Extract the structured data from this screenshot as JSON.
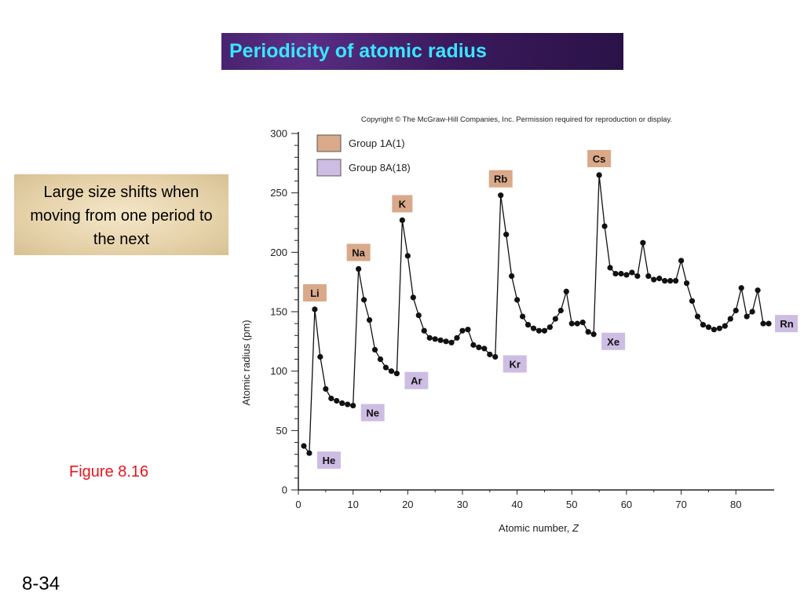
{
  "slide": {
    "title": "Periodicity of atomic radius",
    "note": "Large size shifts when moving from one period to the next",
    "figure_label": "Figure 8.16",
    "slide_number": "8-34"
  },
  "chart_data": {
    "type": "line",
    "copyright": "Copyright © The McGraw-Hill Companies, Inc. Permission required for reproduction or display.",
    "xlabel_prefix": "Atomic number, ",
    "xlabel_var": "Z",
    "ylabel": "Atomic radius (pm)",
    "xlim": [
      0,
      87
    ],
    "ylim": [
      0,
      300
    ],
    "xticks": [
      0,
      10,
      20,
      30,
      40,
      50,
      60,
      70,
      80
    ],
    "yticks": [
      0,
      50,
      100,
      150,
      200,
      250,
      300
    ],
    "legend": [
      {
        "label": "Group 1A(1)",
        "color": "#d9a98a"
      },
      {
        "label": "Group 8A(18)",
        "color": "#cdbde3"
      }
    ],
    "legend_position": "top-left",
    "colors": {
      "group1": "#d9a98a",
      "group8": "#cdbde3",
      "line": "#111111"
    },
    "x": [
      1,
      2,
      3,
      4,
      5,
      6,
      7,
      8,
      9,
      10,
      11,
      12,
      13,
      14,
      15,
      16,
      17,
      18,
      19,
      20,
      21,
      22,
      23,
      24,
      25,
      26,
      27,
      28,
      29,
      30,
      31,
      32,
      33,
      34,
      35,
      36,
      37,
      38,
      39,
      40,
      41,
      42,
      43,
      44,
      45,
      46,
      47,
      48,
      49,
      50,
      51,
      52,
      53,
      54,
      55,
      56,
      57,
      58,
      59,
      60,
      61,
      62,
      63,
      64,
      65,
      66,
      67,
      68,
      69,
      70,
      71,
      72,
      73,
      74,
      75,
      76,
      77,
      78,
      79,
      80,
      81,
      82,
      83,
      84,
      85,
      86
    ],
    "y": [
      37,
      31,
      152,
      112,
      85,
      77,
      75,
      73,
      72,
      71,
      186,
      160,
      143,
      118,
      110,
      103,
      100,
      98,
      227,
      197,
      162,
      147,
      134,
      128,
      127,
      126,
      125,
      124,
      128,
      134,
      135,
      122,
      120,
      119,
      114,
      112,
      248,
      215,
      180,
      160,
      146,
      139,
      136,
      134,
      134,
      137,
      144,
      151,
      167,
      140,
      140,
      141,
      133,
      131,
      265,
      222,
      187,
      182,
      182,
      181,
      183,
      180,
      208,
      180,
      177,
      178,
      176,
      176,
      176,
      193,
      174,
      159,
      146,
      139,
      137,
      135,
      136,
      138,
      144,
      151,
      170,
      146,
      150,
      168,
      140,
      140
    ],
    "element_labels": [
      {
        "text": "Li",
        "x": 3,
        "group": "1A"
      },
      {
        "text": "Na",
        "x": 11,
        "group": "1A"
      },
      {
        "text": "K",
        "x": 19,
        "group": "1A"
      },
      {
        "text": "Rb",
        "x": 37,
        "group": "1A"
      },
      {
        "text": "Cs",
        "x": 55,
        "group": "1A"
      },
      {
        "text": "He",
        "x": 2,
        "group": "8A"
      },
      {
        "text": "Ne",
        "x": 10,
        "group": "8A"
      },
      {
        "text": "Ar",
        "x": 18,
        "group": "8A"
      },
      {
        "text": "Kr",
        "x": 36,
        "group": "8A"
      },
      {
        "text": "Xe",
        "x": 54,
        "group": "8A"
      },
      {
        "text": "Rn",
        "x": 86,
        "group": "8A"
      }
    ]
  }
}
